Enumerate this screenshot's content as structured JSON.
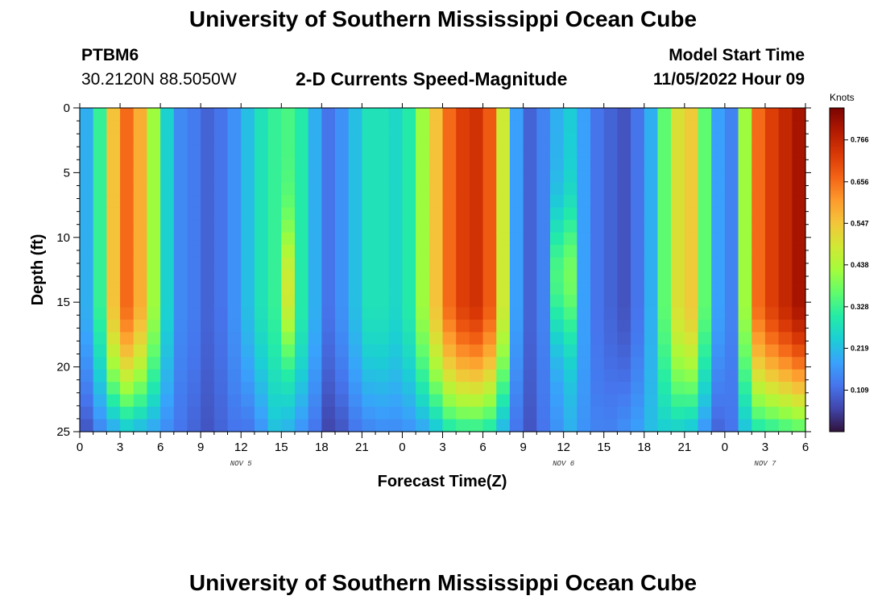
{
  "header": {
    "title": "University of Southern Mississippi Ocean Cube",
    "station_id": "PTBM6",
    "station_coords": "30.2120N  88.5050W",
    "start_time_label": "Model Start Time",
    "start_time_value": "11/05/2022 Hour 09",
    "footer_title": "University of Southern Mississippi Ocean Cube"
  },
  "colors": {
    "colormap": [
      "#30123b",
      "#4145ab",
      "#4675ed",
      "#39a2fc",
      "#1bcfd4",
      "#24eca6",
      "#61fc6c",
      "#a4fc3b",
      "#d1e834",
      "#f3c63a",
      "#fe9b2d",
      "#f36315",
      "#d93806",
      "#b11901",
      "#7a0402"
    ]
  },
  "chart_data": {
    "type": "heatmap",
    "title": "2-D Currents Speed-Magnitude",
    "xlabel": "Forecast Time(Z)",
    "ylabel": "Depth (ft)",
    "colorbar_label": "Knots",
    "x_tick_labels": [
      "0",
      "3",
      "6",
      "9",
      "12",
      "15",
      "18",
      "21",
      "0",
      "3",
      "6",
      "9",
      "12",
      "15",
      "18",
      "21",
      "0",
      "3",
      "6"
    ],
    "date_labels": [
      {
        "text": "NOV 5",
        "hour": 12
      },
      {
        "text": "NOV 6",
        "hour": 36
      },
      {
        "text": "NOV 7",
        "hour": 51
      }
    ],
    "xlim": [
      0,
      54
    ],
    "y_ticks": [
      0,
      5,
      10,
      15,
      20,
      25
    ],
    "y_tick_labels": [
      "0",
      "5",
      "10",
      "15",
      "20",
      "25"
    ],
    "ylim": [
      0,
      25
    ],
    "y_inverted": true,
    "colorbar_ticks": [
      0.109,
      0.219,
      0.328,
      0.438,
      0.547,
      0.656,
      0.766
    ],
    "colorbar_tick_labels": [
      "0.109",
      "0.219",
      "0.328",
      "0.438",
      "0.547",
      "0.656",
      "0.766"
    ],
    "colorbar_range": [
      0.0,
      0.85
    ],
    "columns": [
      {
        "hour": 0,
        "surface": 0.2,
        "bottom": 0.08,
        "depth_peak": 0
      },
      {
        "hour": 1,
        "surface": 0.32,
        "bottom": 0.14,
        "depth_peak": 0
      },
      {
        "hour": 2,
        "surface": 0.55,
        "bottom": 0.18,
        "depth_peak": 0
      },
      {
        "hour": 3,
        "surface": 0.66,
        "bottom": 0.22,
        "depth_peak": 0
      },
      {
        "hour": 4,
        "surface": 0.58,
        "bottom": 0.2,
        "depth_peak": 0
      },
      {
        "hour": 5,
        "surface": 0.42,
        "bottom": 0.18,
        "depth_peak": 0
      },
      {
        "hour": 6,
        "surface": 0.25,
        "bottom": 0.15,
        "depth_peak": 0
      },
      {
        "hour": 7,
        "surface": 0.15,
        "bottom": 0.12,
        "depth_peak": 0
      },
      {
        "hour": 8,
        "surface": 0.13,
        "bottom": 0.1,
        "depth_peak": 0
      },
      {
        "hour": 9,
        "surface": 0.1,
        "bottom": 0.08,
        "depth_peak": 0
      },
      {
        "hour": 10,
        "surface": 0.12,
        "bottom": 0.1,
        "depth_peak": 0
      },
      {
        "hour": 11,
        "surface": 0.16,
        "bottom": 0.12,
        "depth_peak": 0
      },
      {
        "hour": 12,
        "surface": 0.22,
        "bottom": 0.12,
        "depth_peak": 0
      },
      {
        "hour": 13,
        "surface": 0.28,
        "bottom": 0.16,
        "depth_peak": 0
      },
      {
        "hour": 14,
        "surface": 0.32,
        "bottom": 0.22,
        "depth_peak": 0
      },
      {
        "hour": 15,
        "surface": 0.34,
        "bottom": 0.2,
        "depth_peak": 14
      },
      {
        "hour": 16,
        "surface": 0.3,
        "bottom": 0.16,
        "depth_peak": 0
      },
      {
        "hour": 17,
        "surface": 0.2,
        "bottom": 0.12,
        "depth_peak": 0
      },
      {
        "hour": 18,
        "surface": 0.12,
        "bottom": 0.06,
        "depth_peak": 0
      },
      {
        "hour": 19,
        "surface": 0.16,
        "bottom": 0.08,
        "depth_peak": 0
      },
      {
        "hour": 20,
        "surface": 0.22,
        "bottom": 0.12,
        "depth_peak": 0
      },
      {
        "hour": 21,
        "surface": 0.28,
        "bottom": 0.14,
        "depth_peak": 0
      },
      {
        "hour": 22,
        "surface": 0.28,
        "bottom": 0.15,
        "depth_peak": 0
      },
      {
        "hour": 23,
        "surface": 0.26,
        "bottom": 0.15,
        "depth_peak": 0
      },
      {
        "hour": 24,
        "surface": 0.3,
        "bottom": 0.16,
        "depth_peak": 0
      },
      {
        "hour": 25,
        "surface": 0.42,
        "bottom": 0.18,
        "depth_peak": 0
      },
      {
        "hour": 26,
        "surface": 0.55,
        "bottom": 0.22,
        "depth_peak": 0
      },
      {
        "hour": 27,
        "surface": 0.66,
        "bottom": 0.28,
        "depth_peak": 0
      },
      {
        "hour": 28,
        "surface": 0.72,
        "bottom": 0.3,
        "depth_peak": 0
      },
      {
        "hour": 29,
        "surface": 0.74,
        "bottom": 0.3,
        "depth_peak": 0
      },
      {
        "hour": 30,
        "surface": 0.68,
        "bottom": 0.28,
        "depth_peak": 0
      },
      {
        "hour": 31,
        "surface": 0.48,
        "bottom": 0.2,
        "depth_peak": 0
      },
      {
        "hour": 32,
        "surface": 0.18,
        "bottom": 0.12,
        "depth_peak": 0
      },
      {
        "hour": 33,
        "surface": 0.1,
        "bottom": 0.08,
        "depth_peak": 0
      },
      {
        "hour": 34,
        "surface": 0.14,
        "bottom": 0.12,
        "depth_peak": 0
      },
      {
        "hour": 35,
        "surface": 0.2,
        "bottom": 0.16,
        "depth_peak": 13
      },
      {
        "hour": 36,
        "surface": 0.24,
        "bottom": 0.2,
        "depth_peak": 13
      },
      {
        "hour": 37,
        "surface": 0.18,
        "bottom": 0.16,
        "depth_peak": 0
      },
      {
        "hour": 38,
        "surface": 0.12,
        "bottom": 0.14,
        "depth_peak": 0
      },
      {
        "hour": 39,
        "surface": 0.1,
        "bottom": 0.14,
        "depth_peak": 0
      },
      {
        "hour": 40,
        "surface": 0.08,
        "bottom": 0.16,
        "depth_peak": 0
      },
      {
        "hour": 41,
        "surface": 0.12,
        "bottom": 0.18,
        "depth_peak": 0
      },
      {
        "hour": 42,
        "surface": 0.2,
        "bottom": 0.22,
        "depth_peak": 0
      },
      {
        "hour": 43,
        "surface": 0.36,
        "bottom": 0.24,
        "depth_peak": 0
      },
      {
        "hour": 44,
        "surface": 0.5,
        "bottom": 0.24,
        "depth_peak": 0
      },
      {
        "hour": 45,
        "surface": 0.54,
        "bottom": 0.22,
        "depth_peak": 0
      },
      {
        "hour": 46,
        "surface": 0.36,
        "bottom": 0.16,
        "depth_peak": 0
      },
      {
        "hour": 47,
        "surface": 0.18,
        "bottom": 0.1,
        "depth_peak": 0
      },
      {
        "hour": 48,
        "surface": 0.14,
        "bottom": 0.12,
        "depth_peak": 0
      },
      {
        "hour": 49,
        "surface": 0.42,
        "bottom": 0.22,
        "depth_peak": 0
      },
      {
        "hour": 50,
        "surface": 0.66,
        "bottom": 0.28,
        "depth_peak": 0
      },
      {
        "hour": 51,
        "surface": 0.72,
        "bottom": 0.3,
        "depth_peak": 0
      },
      {
        "hour": 52,
        "surface": 0.76,
        "bottom": 0.32,
        "depth_peak": 0
      },
      {
        "hour": 53,
        "surface": 0.8,
        "bottom": 0.34,
        "depth_peak": 0
      }
    ]
  }
}
